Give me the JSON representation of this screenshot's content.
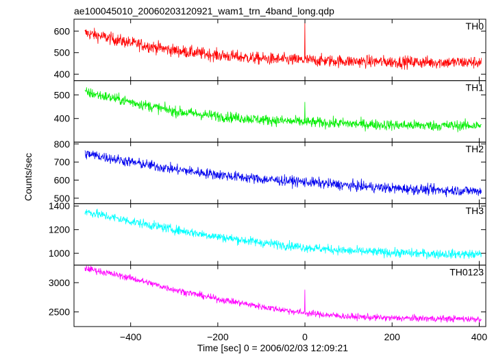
{
  "chart_data": {
    "type": "line",
    "title": "ae100045010_20060203120921_wam1_trn_4band_long.qdp",
    "xlabel": "Time [sec] 0 = 2006/02/03 12:09:21",
    "ylabel": "Counts/sec",
    "xlim": [
      -530,
      415
    ],
    "x_ticks": [
      -400,
      -200,
      0,
      200,
      400
    ],
    "x_tick_labels": [
      "−400",
      "−200",
      "0",
      "200",
      "400"
    ],
    "shared_x_axis": true,
    "grid": false,
    "panels": [
      {
        "name": "TH0",
        "color": "#ff0000",
        "ylim": [
          370,
          655
        ],
        "y_ticks": [
          400,
          500,
          600
        ],
        "y_tick_labels": [
          "400",
          "500",
          "600"
        ],
        "trend": [
          [
            -500,
            590
          ],
          [
            -400,
            545
          ],
          [
            -300,
            510
          ],
          [
            -200,
            488
          ],
          [
            -100,
            472
          ],
          [
            0,
            465
          ],
          [
            100,
            460
          ],
          [
            200,
            457
          ],
          [
            300,
            455
          ],
          [
            400,
            455
          ]
        ],
        "noise": 28,
        "spikes": [
          [
            0,
            645
          ]
        ]
      },
      {
        "name": "TH1",
        "color": "#00ee00",
        "ylim": [
          300,
          560
        ],
        "y_ticks": [
          400,
          500
        ],
        "y_tick_labels": [
          "400",
          "500"
        ],
        "trend": [
          [
            -500,
            510
          ],
          [
            -400,
            470
          ],
          [
            -300,
            430
          ],
          [
            -200,
            410
          ],
          [
            -100,
            395
          ],
          [
            0,
            385
          ],
          [
            100,
            378
          ],
          [
            200,
            372
          ],
          [
            300,
            370
          ],
          [
            400,
            370
          ]
        ],
        "noise": 22,
        "spikes": [
          [
            0,
            470
          ]
        ]
      },
      {
        "name": "TH2",
        "color": "#0000ee",
        "ylim": [
          470,
          810
        ],
        "y_ticks": [
          500,
          600,
          700,
          800
        ],
        "y_tick_labels": [
          "500",
          "600",
          "700",
          "800"
        ],
        "trend": [
          [
            -500,
            745
          ],
          [
            -400,
            700
          ],
          [
            -300,
            660
          ],
          [
            -200,
            630
          ],
          [
            -100,
            605
          ],
          [
            0,
            590
          ],
          [
            100,
            570
          ],
          [
            200,
            555
          ],
          [
            300,
            545
          ],
          [
            400,
            540
          ]
        ],
        "noise": 28,
        "spikes": []
      },
      {
        "name": "TH3",
        "color": "#00ffff",
        "ylim": [
          900,
          1420
        ],
        "y_ticks": [
          1000,
          1200,
          1400
        ],
        "y_tick_labels": [
          "1000",
          "1200",
          "1400"
        ],
        "trend": [
          [
            -500,
            1350
          ],
          [
            -400,
            1270
          ],
          [
            -300,
            1200
          ],
          [
            -200,
            1140
          ],
          [
            -100,
            1090
          ],
          [
            0,
            1050
          ],
          [
            100,
            1020
          ],
          [
            200,
            1005
          ],
          [
            300,
            995
          ],
          [
            400,
            990
          ]
        ],
        "noise": 38,
        "spikes": []
      },
      {
        "name": "TH0123",
        "color": "#ff00ff",
        "ylim": [
          2250,
          3300
        ],
        "y_ticks": [
          2500,
          3000
        ],
        "y_tick_labels": [
          "2500",
          "3000"
        ],
        "trend": [
          [
            -500,
            3240
          ],
          [
            -400,
            3080
          ],
          [
            -300,
            2880
          ],
          [
            -200,
            2720
          ],
          [
            -100,
            2590
          ],
          [
            0,
            2480
          ],
          [
            100,
            2420
          ],
          [
            200,
            2395
          ],
          [
            300,
            2385
          ],
          [
            400,
            2380
          ]
        ],
        "noise": 55,
        "spikes": [
          [
            0,
            2880
          ]
        ]
      }
    ]
  }
}
